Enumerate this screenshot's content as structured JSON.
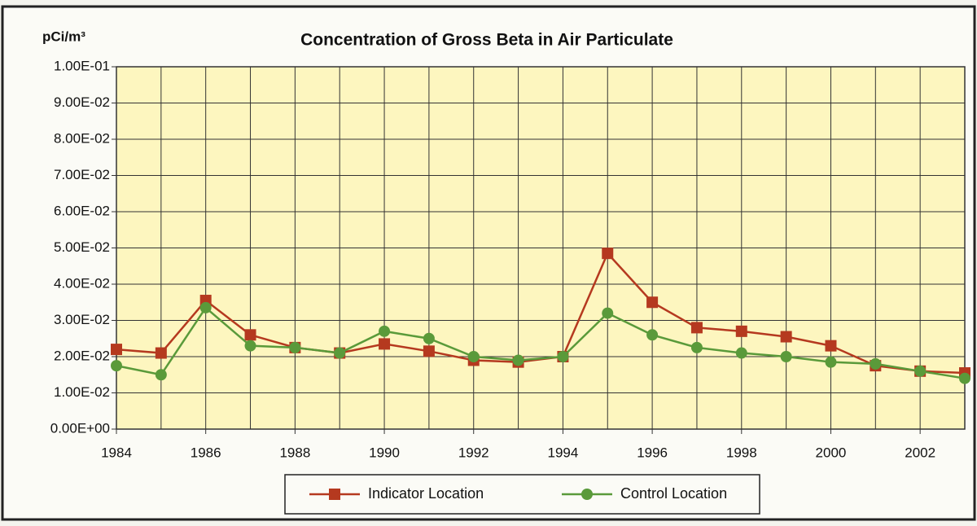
{
  "chart_data": {
    "type": "line",
    "title": "Concentration of Gross Beta in Air Particulate",
    "y_unit": "pCi/m³",
    "x": [
      1984,
      1985,
      1986,
      1987,
      1988,
      1989,
      1990,
      1991,
      1992,
      1993,
      1994,
      1995,
      1996,
      1997,
      1998,
      1999,
      2000,
      2001,
      2002,
      2003
    ],
    "series": [
      {
        "name": "Indicator Location",
        "color": "#b5391f",
        "marker": "square",
        "values": [
          0.022,
          0.021,
          0.0355,
          0.026,
          0.0225,
          0.021,
          0.0235,
          0.0215,
          0.019,
          0.0185,
          0.02,
          0.0485,
          0.035,
          0.028,
          0.027,
          0.0255,
          0.023,
          0.0175,
          0.016,
          0.0155
        ]
      },
      {
        "name": "Control Location",
        "color": "#5a9a3a",
        "marker": "circle",
        "values": [
          0.0175,
          0.015,
          0.0335,
          0.023,
          0.0225,
          0.021,
          0.027,
          0.025,
          0.02,
          0.019,
          0.02,
          0.032,
          0.026,
          0.0225,
          0.021,
          0.02,
          0.0185,
          0.018,
          0.016,
          0.014
        ]
      }
    ],
    "xlim": [
      1984,
      2003
    ],
    "xticks": [
      1984,
      1986,
      1988,
      1990,
      1992,
      1994,
      1996,
      1998,
      2000,
      2002
    ],
    "ylim": [
      0,
      0.1
    ],
    "yticks": [
      {
        "value": 0,
        "label": "0.00E+00"
      },
      {
        "value": 0.01,
        "label": "1.00E-02"
      },
      {
        "value": 0.02,
        "label": "2.00E-02"
      },
      {
        "value": 0.03,
        "label": "3.00E-02"
      },
      {
        "value": 0.04,
        "label": "4.00E-02"
      },
      {
        "value": 0.05,
        "label": "5.00E-02"
      },
      {
        "value": 0.06,
        "label": "6.00E-02"
      },
      {
        "value": 0.07,
        "label": "7.00E-02"
      },
      {
        "value": 0.08,
        "label": "8.00E-02"
      },
      {
        "value": 0.09,
        "label": "9.00E-02"
      },
      {
        "value": 0.1,
        "label": "1.00E-01"
      }
    ],
    "grid": true,
    "legend": "bottom"
  }
}
